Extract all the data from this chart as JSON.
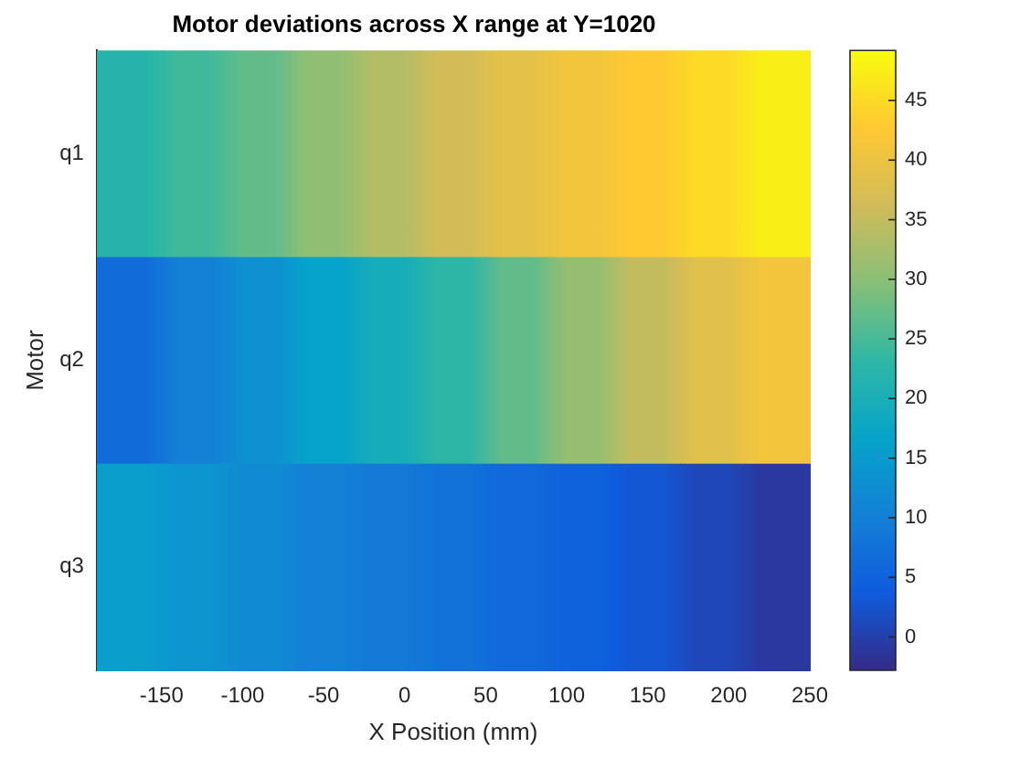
{
  "chart_data": {
    "type": "heatmap",
    "title": "Motor deviations across X range at Y=1020",
    "xlabel": "X Position (mm)",
    "ylabel": "Motor",
    "x": [
      -170,
      -130,
      -90,
      -50,
      -10,
      30,
      70,
      110,
      150,
      190,
      230
    ],
    "y_categories": [
      "q1",
      "q2",
      "q3"
    ],
    "cells": [
      [
        22,
        24.5,
        27,
        30.5,
        33.5,
        36.5,
        39,
        41,
        43,
        45,
        47.5
      ],
      [
        6.5,
        10,
        13,
        16.5,
        19.5,
        23,
        27,
        31,
        35,
        38.5,
        41
      ],
      [
        15.5,
        14,
        12,
        10,
        9,
        7.5,
        6,
        4.5,
        3,
        1,
        -1
      ]
    ],
    "xlim": [
      -190,
      250
    ],
    "xticks": [
      -150,
      -100,
      -50,
      0,
      50,
      100,
      150,
      200,
      250
    ],
    "clim": [
      -2.8,
      49.2
    ],
    "cticks": [
      0,
      5,
      10,
      15,
      20,
      25,
      30,
      35,
      40,
      45
    ]
  }
}
